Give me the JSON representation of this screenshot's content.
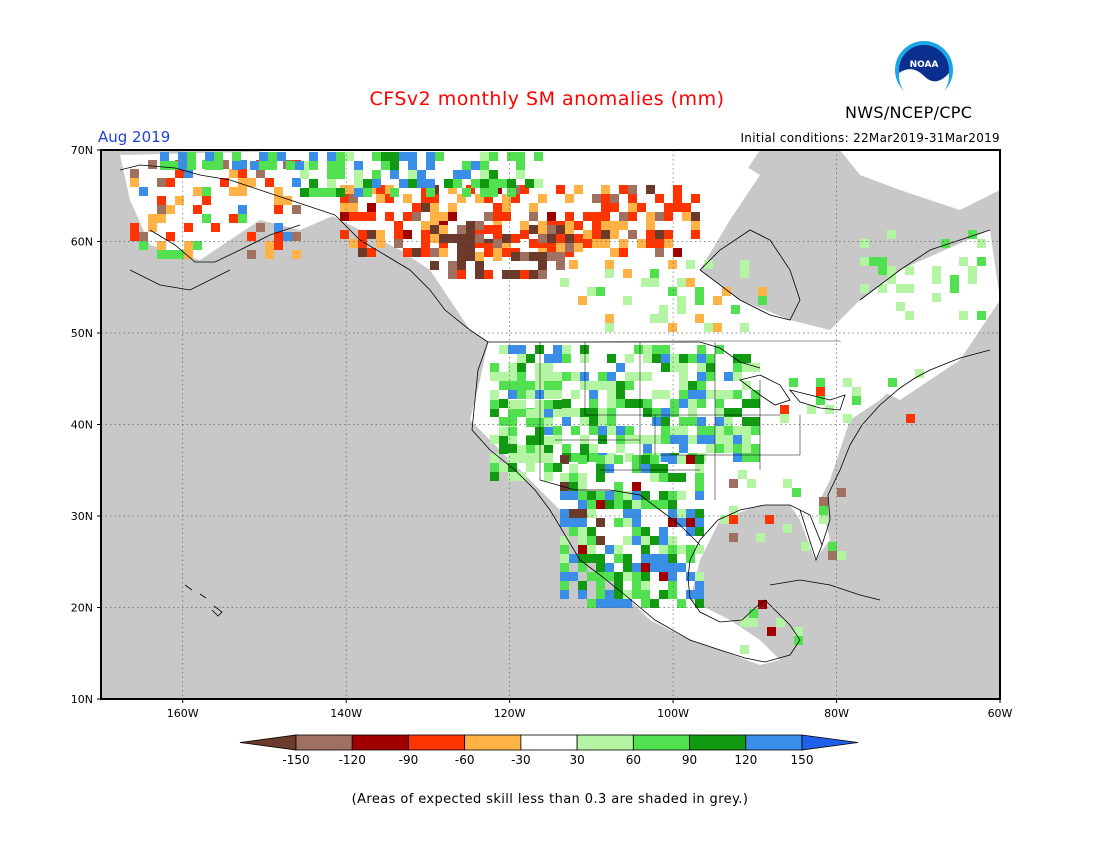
{
  "header": {
    "title": "CFSv2 monthly SM anomalies (mm)",
    "period": "Aug 2019",
    "initial_conditions": "Initial conditions: 22Mar2019-31Mar2019",
    "agency": "NWS/NCEP/CPC",
    "logo_text": "NOAA"
  },
  "map": {
    "lat_labels": [
      "70N",
      "60N",
      "50N",
      "40N",
      "30N",
      "20N",
      "10N"
    ],
    "lon_labels": [
      "160W",
      "140W",
      "120W",
      "100W",
      "80W",
      "60W"
    ],
    "no_skill_color": "#c8c8c8",
    "coastline_color": "#000000"
  },
  "legend": {
    "ticks": [
      "-150",
      "-120",
      "-90",
      "-60",
      "-30",
      "30",
      "60",
      "90",
      "120",
      "150"
    ],
    "colors": [
      "#6b3a2a",
      "#a07060",
      "#a00000",
      "#ff3300",
      "#ffb347",
      "#ffffff",
      "#b3f5a3",
      "#50e050",
      "#119911",
      "#3a8ee8",
      "#2060e8"
    ]
  },
  "footnote": "(Areas of expected skill less than 0.3 are shaded in grey.)"
}
